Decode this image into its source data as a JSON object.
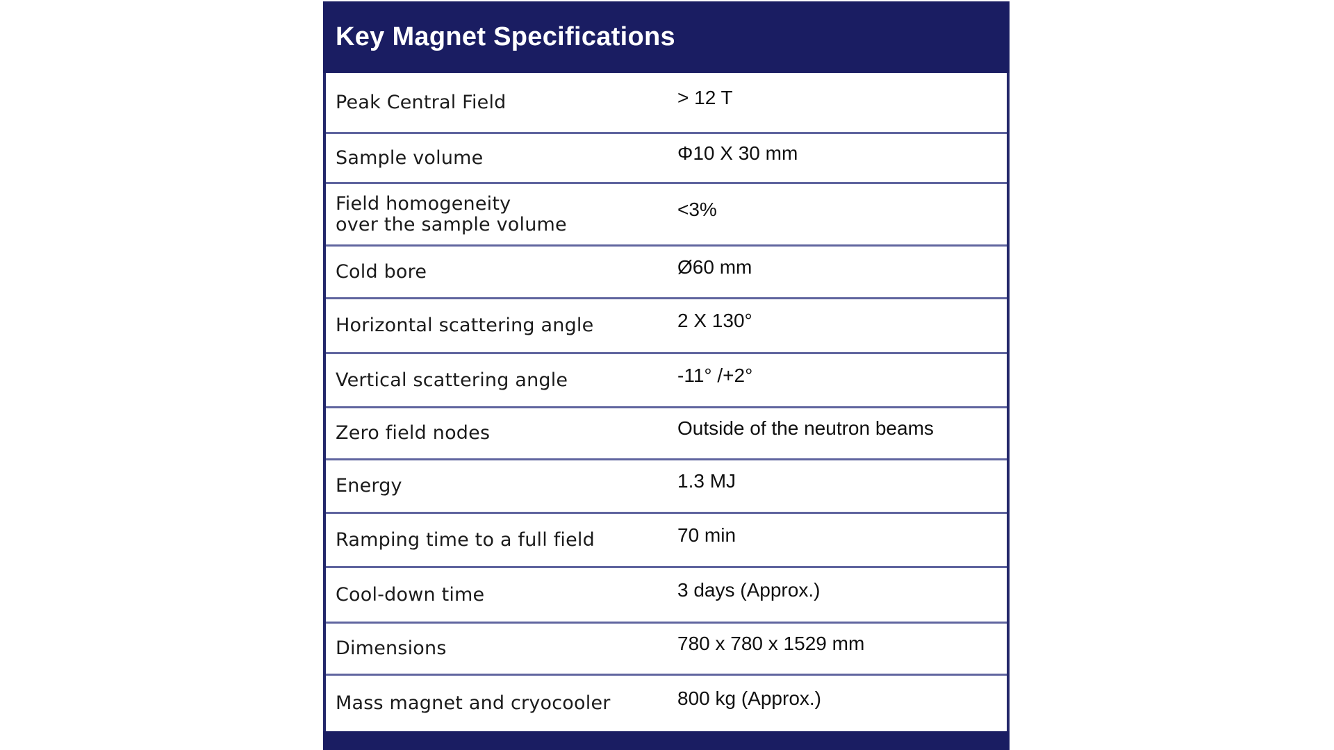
{
  "table": {
    "title": "Key Magnet Specifications",
    "rows": [
      {
        "label": "Peak Central Field",
        "value": "> 12 T"
      },
      {
        "label": "Sample volume",
        "value": "Φ10 X 30 mm"
      },
      {
        "label": "Field homogeneity\nover the sample volume",
        "value": "<3%"
      },
      {
        "label": "Cold bore",
        "value": "Ø60 mm"
      },
      {
        "label": "Horizontal scattering angle",
        "value": "2 X 130°"
      },
      {
        "label": "Vertical scattering angle",
        "value": "-11° /+2°"
      },
      {
        "label": "Zero field nodes",
        "value": "Outside of the neutron beams"
      },
      {
        "label": "Energy",
        "value": "1.3 MJ"
      },
      {
        "label": "Ramping time to a full field",
        "value": "70 min"
      },
      {
        "label": "Cool-down time",
        "value": "3 days (Approx.)"
      },
      {
        "label": "Dimensions",
        "value": "780 x 780 x 1529 mm"
      },
      {
        "label": "Mass magnet and cryocooler",
        "value": "800 kg (Approx.)"
      }
    ],
    "colors": {
      "header_bg": "#1a1d62",
      "footer_bg": "#1a1d62",
      "divider": "#60659f",
      "side_border": "#23276a",
      "title_text": "#ffffff",
      "body_text": "#1b1b1b"
    }
  }
}
